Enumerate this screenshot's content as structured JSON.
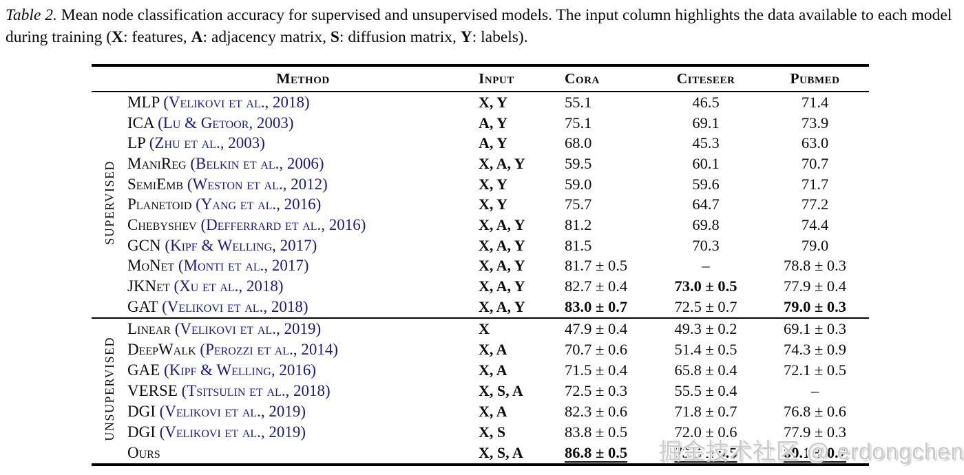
{
  "caption": {
    "tag": "Table 2.",
    "body": " Mean node classification accuracy for supervised and unsupervised models. The input column highlights the data available to each model during training (",
    "legend": [
      {
        "key": "X",
        "rest": ": features, "
      },
      {
        "key": "A",
        "rest": ": adjacency matrix, "
      },
      {
        "key": "S",
        "rest": ": diffusion matrix, "
      },
      {
        "key": "Y",
        "rest": ": labels)."
      }
    ]
  },
  "table": {
    "headers": {
      "method": "Method",
      "input": "Input",
      "cora": "Cora",
      "citeseer": "Citeseer",
      "pubmed": "Pubmed"
    },
    "sections": [
      {
        "label": "Supervised",
        "rows": [
          {
            "method": "MLP",
            "citation": "(Velikovi et al., 2018)",
            "input": "X, Y",
            "values": [
              {
                "t": "55.1"
              },
              {
                "t": "46.5"
              },
              {
                "t": "71.4"
              }
            ]
          },
          {
            "method": "ICA",
            "citation": "(Lu & Getoor, 2003)",
            "input": "A, Y",
            "values": [
              {
                "t": "75.1"
              },
              {
                "t": "69.1"
              },
              {
                "t": "73.9"
              }
            ]
          },
          {
            "method": "LP",
            "citation": "(Zhu et al., 2003)",
            "input": "A, Y",
            "values": [
              {
                "t": "68.0"
              },
              {
                "t": "45.3"
              },
              {
                "t": "63.0"
              }
            ]
          },
          {
            "method": "ManiReg",
            "citation": "(Belkin et al., 2006)",
            "input": "X, A, Y",
            "values": [
              {
                "t": "59.5"
              },
              {
                "t": "60.1"
              },
              {
                "t": "70.7"
              }
            ]
          },
          {
            "method": "SemiEmb",
            "citation": "(Weston et al., 2012)",
            "input": "X, Y",
            "values": [
              {
                "t": "59.0"
              },
              {
                "t": "59.6"
              },
              {
                "t": "71.7"
              }
            ]
          },
          {
            "method": "Planetoid",
            "citation": "(Yang et al., 2016)",
            "input": "X, Y",
            "values": [
              {
                "t": "75.7"
              },
              {
                "t": "64.7"
              },
              {
                "t": "77.2"
              }
            ]
          },
          {
            "method": "Chebyshev",
            "citation": "(Defferrard et al., 2016)",
            "input": "X, A, Y",
            "values": [
              {
                "t": "81.2"
              },
              {
                "t": "69.8"
              },
              {
                "t": "74.4"
              }
            ]
          },
          {
            "method": "GCN",
            "citation": "(Kipf & Welling, 2017)",
            "input": "X, A, Y",
            "values": [
              {
                "t": "81.5"
              },
              {
                "t": "70.3"
              },
              {
                "t": "79.0"
              }
            ]
          },
          {
            "method": "MoNet",
            "citation": "(Monti et al., 2017)",
            "input": "X, A, Y",
            "values": [
              {
                "t": "81.7 ± 0.5"
              },
              {
                "t": "–"
              },
              {
                "t": "78.8 ± 0.3"
              }
            ]
          },
          {
            "method": "JKNet",
            "citation": "(Xu et al., 2018)",
            "input": "X, A, Y",
            "values": [
              {
                "t": "82.7 ± 0.4"
              },
              {
                "t": "73.0 ± 0.5",
                "b": true
              },
              {
                "t": "77.9 ± 0.4"
              }
            ]
          },
          {
            "method": "GAT",
            "citation": "(Velikovi et al., 2018)",
            "input": "X, A, Y",
            "values": [
              {
                "t": "83.0 ± 0.7",
                "b": true
              },
              {
                "t": "72.5 ± 0.7"
              },
              {
                "t": "79.0 ± 0.3",
                "b": true
              }
            ]
          }
        ]
      },
      {
        "label": "Unsupervised",
        "rows": [
          {
            "method": "Linear",
            "citation": "(Velikovi et al., 2019)",
            "input": "X",
            "values": [
              {
                "t": "47.9 ± 0.4"
              },
              {
                "t": "49.3 ± 0.2"
              },
              {
                "t": "69.1 ± 0.3"
              }
            ]
          },
          {
            "method": "DeepWalk",
            "citation": "(Perozzi et al., 2014)",
            "input": "X, A",
            "values": [
              {
                "t": "70.7 ± 0.6"
              },
              {
                "t": "51.4 ± 0.5"
              },
              {
                "t": "74.3 ± 0.9"
              }
            ]
          },
          {
            "method": "GAE",
            "citation": "(Kipf & Welling, 2016)",
            "input": "X, A",
            "values": [
              {
                "t": "71.5 ± 0.4"
              },
              {
                "t": "65.8 ± 0.4"
              },
              {
                "t": "72.1 ± 0.5"
              }
            ]
          },
          {
            "method": "VERSE",
            "citation": "(Tsitsulin et al., 2018)",
            "input": "X, S, A",
            "values": [
              {
                "t": "72.5 ± 0.3"
              },
              {
                "t": "55.5 ± 0.4"
              },
              {
                "t": "–"
              }
            ]
          },
          {
            "method": "DGI",
            "citation": "(Velikovi et al., 2019)",
            "input": "X, A",
            "values": [
              {
                "t": "82.3 ± 0.6"
              },
              {
                "t": "71.8 ± 0.7"
              },
              {
                "t": "76.8 ± 0.6"
              }
            ]
          },
          {
            "method": "DGI",
            "citation": "(Velikovi et al., 2019)",
            "input": "X, S",
            "values": [
              {
                "t": "83.8 ± 0.5"
              },
              {
                "t": "72.0 ± 0.6"
              },
              {
                "t": "77.9 ± 0.3"
              }
            ]
          },
          {
            "method": "Ours",
            "citation": "",
            "input": "X, S, A",
            "values": [
              {
                "t": "86.8 ± 0.5",
                "b": true,
                "u": true
              },
              {
                "t": "73.3 ± 0.5",
                "b": true,
                "u": true
              },
              {
                "t": "80.1 ± 0.7",
                "b": true,
                "u": true
              }
            ]
          }
        ]
      }
    ]
  },
  "watermark": "掘金技术社区 @ erdongchen",
  "colors": {
    "citation": "#18188C",
    "text": "#0c0c0c",
    "watermark": "#c9c9c9"
  }
}
